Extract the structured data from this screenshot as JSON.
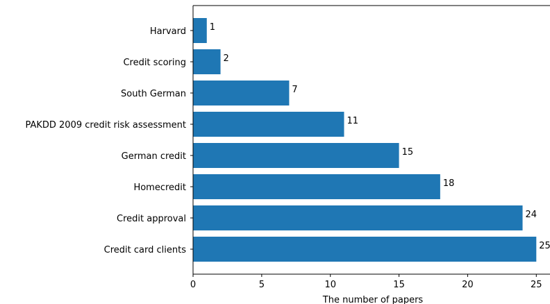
{
  "chart_data": {
    "type": "bar",
    "orientation": "horizontal",
    "categories": [
      "Harvard",
      "Credit scoring",
      "South German",
      "PAKDD 2009 credit risk assessment",
      "German credit",
      "Homecredit",
      "Credit approval",
      "Credit card clients"
    ],
    "values": [
      1,
      2,
      7,
      11,
      15,
      18,
      24,
      25
    ],
    "data_labels": [
      "1",
      "2",
      "7",
      "11",
      "15",
      "18",
      "24",
      "25"
    ],
    "xlabel": "The number of papers",
    "ylabel": "",
    "xlim": [
      0,
      26.25
    ],
    "xticks": [
      0,
      5,
      10,
      15,
      20,
      25
    ],
    "xtick_labels": [
      "0",
      "5",
      "10",
      "15",
      "20",
      "25"
    ],
    "grid": false,
    "bar_color": "#1f77b4"
  }
}
